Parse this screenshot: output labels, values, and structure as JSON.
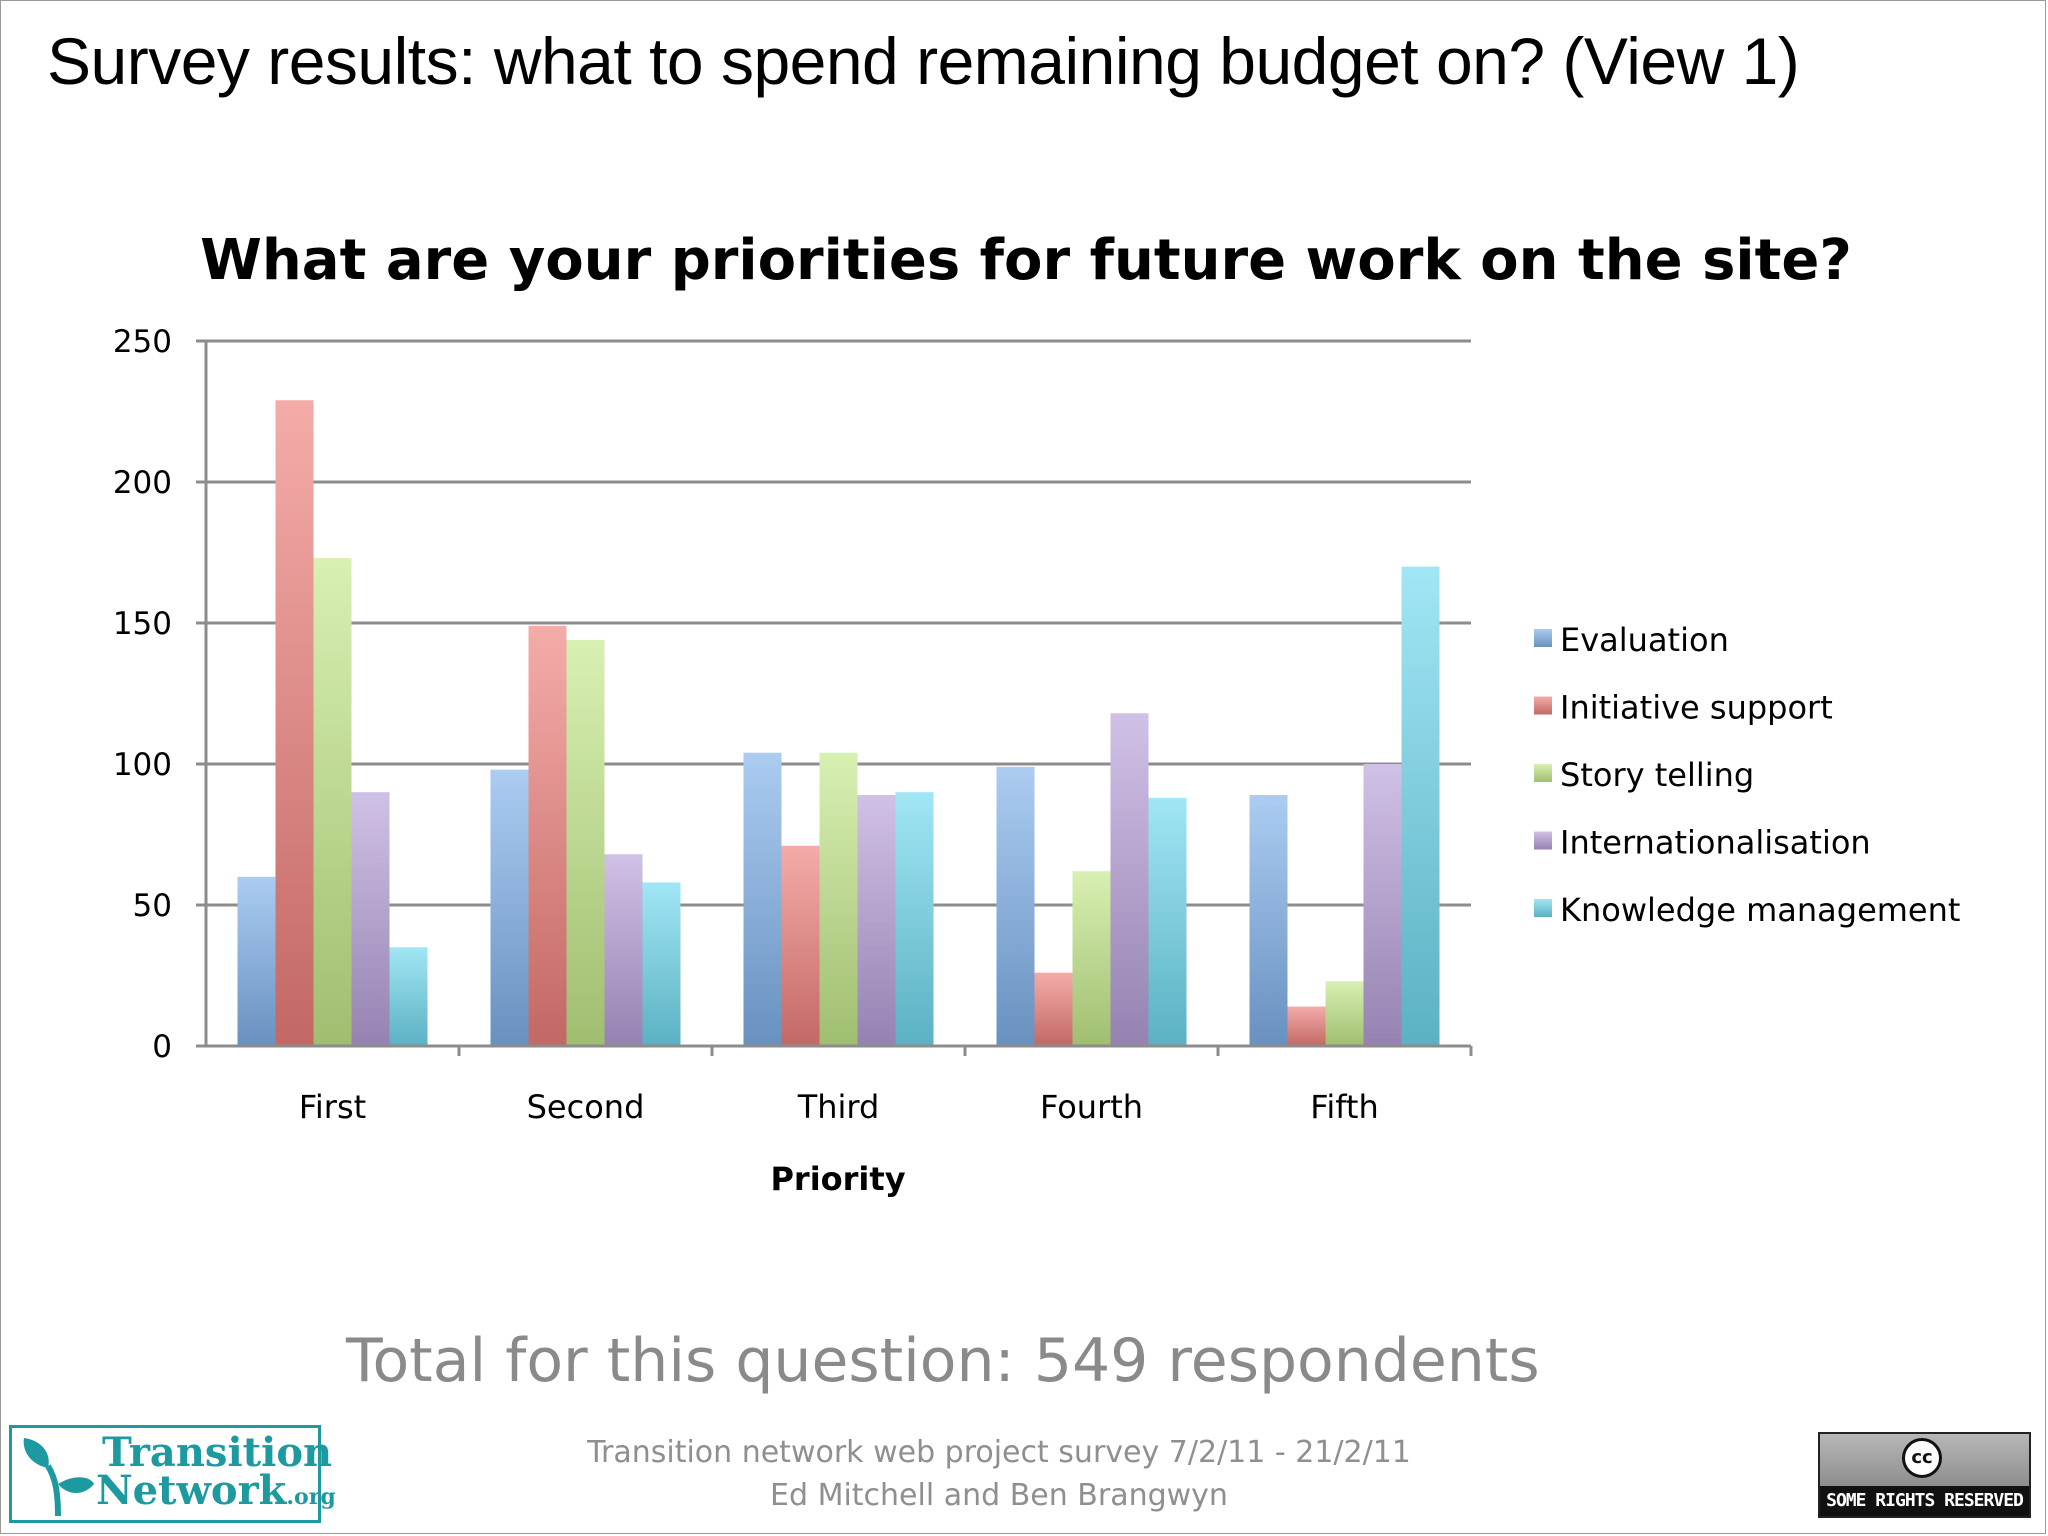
{
  "slide": {
    "title": "Survey results: what to spend remaining budget on? (View 1)",
    "total_text": "Total for this question: 549 respondents",
    "footer_line1": "Transition network web project survey 7/2/11 - 21/2/11",
    "footer_line2": "Ed Mitchell and Ben Brangwyn",
    "logo": {
      "line1": "Transition",
      "line2": "Network",
      "line2_suffix": ".org",
      "icon": "leaf-logo-icon"
    },
    "license_badge": {
      "symbol": "cc",
      "text": "SOME RIGHTS RESERVED"
    }
  },
  "chart_data": {
    "type": "bar",
    "title": "What are your priorities for future work on the site?",
    "xlabel": "Priority",
    "ylabel": "",
    "categories": [
      "First",
      "Second",
      "Third",
      "Fourth",
      "Fifth"
    ],
    "ylim": [
      0,
      250
    ],
    "yticks": [
      0,
      50,
      100,
      150,
      200,
      250
    ],
    "grid": true,
    "legend_position": "right",
    "series": [
      {
        "name": "Evaluation",
        "color": "#7fb1ea",
        "values": [
          60,
          98,
          104,
          99,
          89
        ]
      },
      {
        "name": "Initiative support",
        "color": "#ee7f7a",
        "values": [
          229,
          149,
          71,
          26,
          14
        ]
      },
      {
        "name": "Story telling",
        "color": "#c3e888",
        "values": [
          173,
          144,
          104,
          62,
          23
        ]
      },
      {
        "name": "Internationalisation",
        "color": "#b69fd8",
        "values": [
          90,
          68,
          89,
          118,
          100
        ]
      },
      {
        "name": "Knowledge management",
        "color": "#6fd8ee",
        "values": [
          35,
          58,
          90,
          88,
          170
        ]
      }
    ]
  }
}
